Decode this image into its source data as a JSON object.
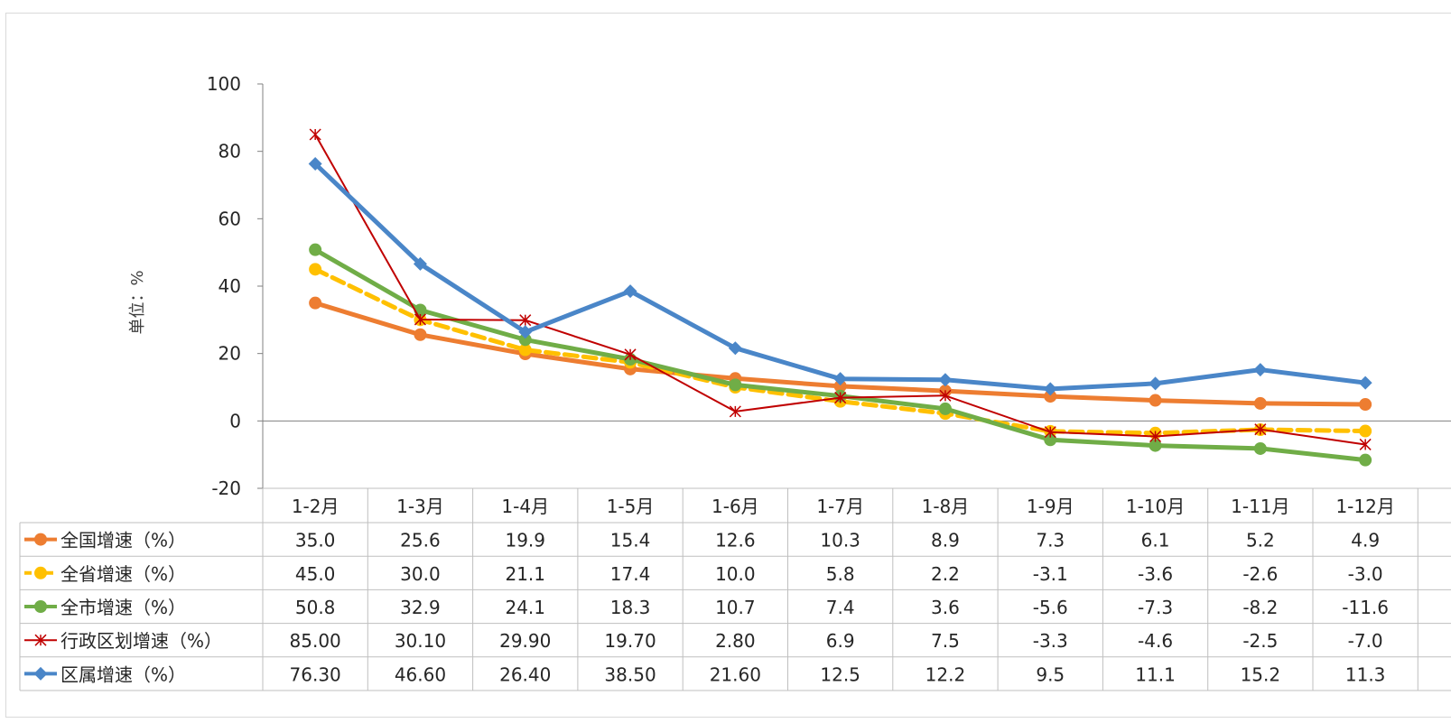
{
  "chart_data": {
    "type": "line",
    "title": "",
    "xlabel": "",
    "ylabel": "单位：%",
    "ylim": [
      -20,
      100
    ],
    "yticks": [
      -20,
      0,
      20,
      40,
      60,
      80,
      100
    ],
    "grid": false,
    "legend": "in data table rows",
    "categories": [
      "1-2月",
      "1-3月",
      "1-4月",
      "1-5月",
      "1-6月",
      "1-7月",
      "1-8月",
      "1-9月",
      "1-10月",
      "1-11月",
      "1-12月"
    ],
    "series": [
      {
        "name": "全国增速（%）",
        "color": "#ED7D31",
        "marker": "circle",
        "dash": false,
        "values": [
          35.0,
          25.6,
          19.9,
          15.4,
          12.6,
          10.3,
          8.9,
          7.3,
          6.1,
          5.2,
          4.9
        ],
        "labels": [
          "35.0",
          "25.6",
          "19.9",
          "15.4",
          "12.6",
          "10.3",
          "8.9",
          "7.3",
          "6.1",
          "5.2",
          "4.9"
        ]
      },
      {
        "name": "全省增速（%）",
        "color": "#FFC000",
        "marker": "circle",
        "dash": true,
        "values": [
          45.0,
          30.0,
          21.1,
          17.4,
          10.0,
          5.8,
          2.2,
          -3.1,
          -3.6,
          -2.6,
          -3.0
        ],
        "labels": [
          "45.0",
          "30.0",
          "21.1",
          "17.4",
          "10.0",
          "5.8",
          "2.2",
          "-3.1",
          "-3.6",
          "-2.6",
          "-3.0"
        ]
      },
      {
        "name": "全市增速（%）",
        "color": "#70AD47",
        "marker": "circle",
        "dash": false,
        "values": [
          50.8,
          32.9,
          24.1,
          18.3,
          10.7,
          7.4,
          3.6,
          -5.6,
          -7.3,
          -8.2,
          -11.6
        ],
        "labels": [
          "50.8",
          "32.9",
          "24.1",
          "18.3",
          "10.7",
          "7.4",
          "3.6",
          "-5.6",
          "-7.3",
          "-8.2",
          "-11.6"
        ]
      },
      {
        "name": "行政区划增速（%）",
        "color": "#C00000",
        "marker": "star",
        "dash": false,
        "values": [
          85.0,
          30.1,
          29.9,
          19.7,
          2.8,
          6.9,
          7.5,
          -3.3,
          -4.6,
          -2.5,
          -7.0
        ],
        "labels": [
          "85.00",
          "30.10",
          "29.90",
          "19.70",
          "2.80",
          "6.9",
          "7.5",
          "-3.3",
          "-4.6",
          "-2.5",
          "-7.0"
        ]
      },
      {
        "name": "区属增速（%）",
        "color": "#4A86C8",
        "marker": "diamond",
        "dash": false,
        "values": [
          76.3,
          46.6,
          26.4,
          38.5,
          21.6,
          12.5,
          12.2,
          9.5,
          11.1,
          15.2,
          11.3
        ],
        "labels": [
          "76.30",
          "46.60",
          "26.40",
          "38.50",
          "21.60",
          "12.5",
          "12.2",
          "9.5",
          "11.1",
          "15.2",
          "11.3"
        ]
      }
    ]
  }
}
